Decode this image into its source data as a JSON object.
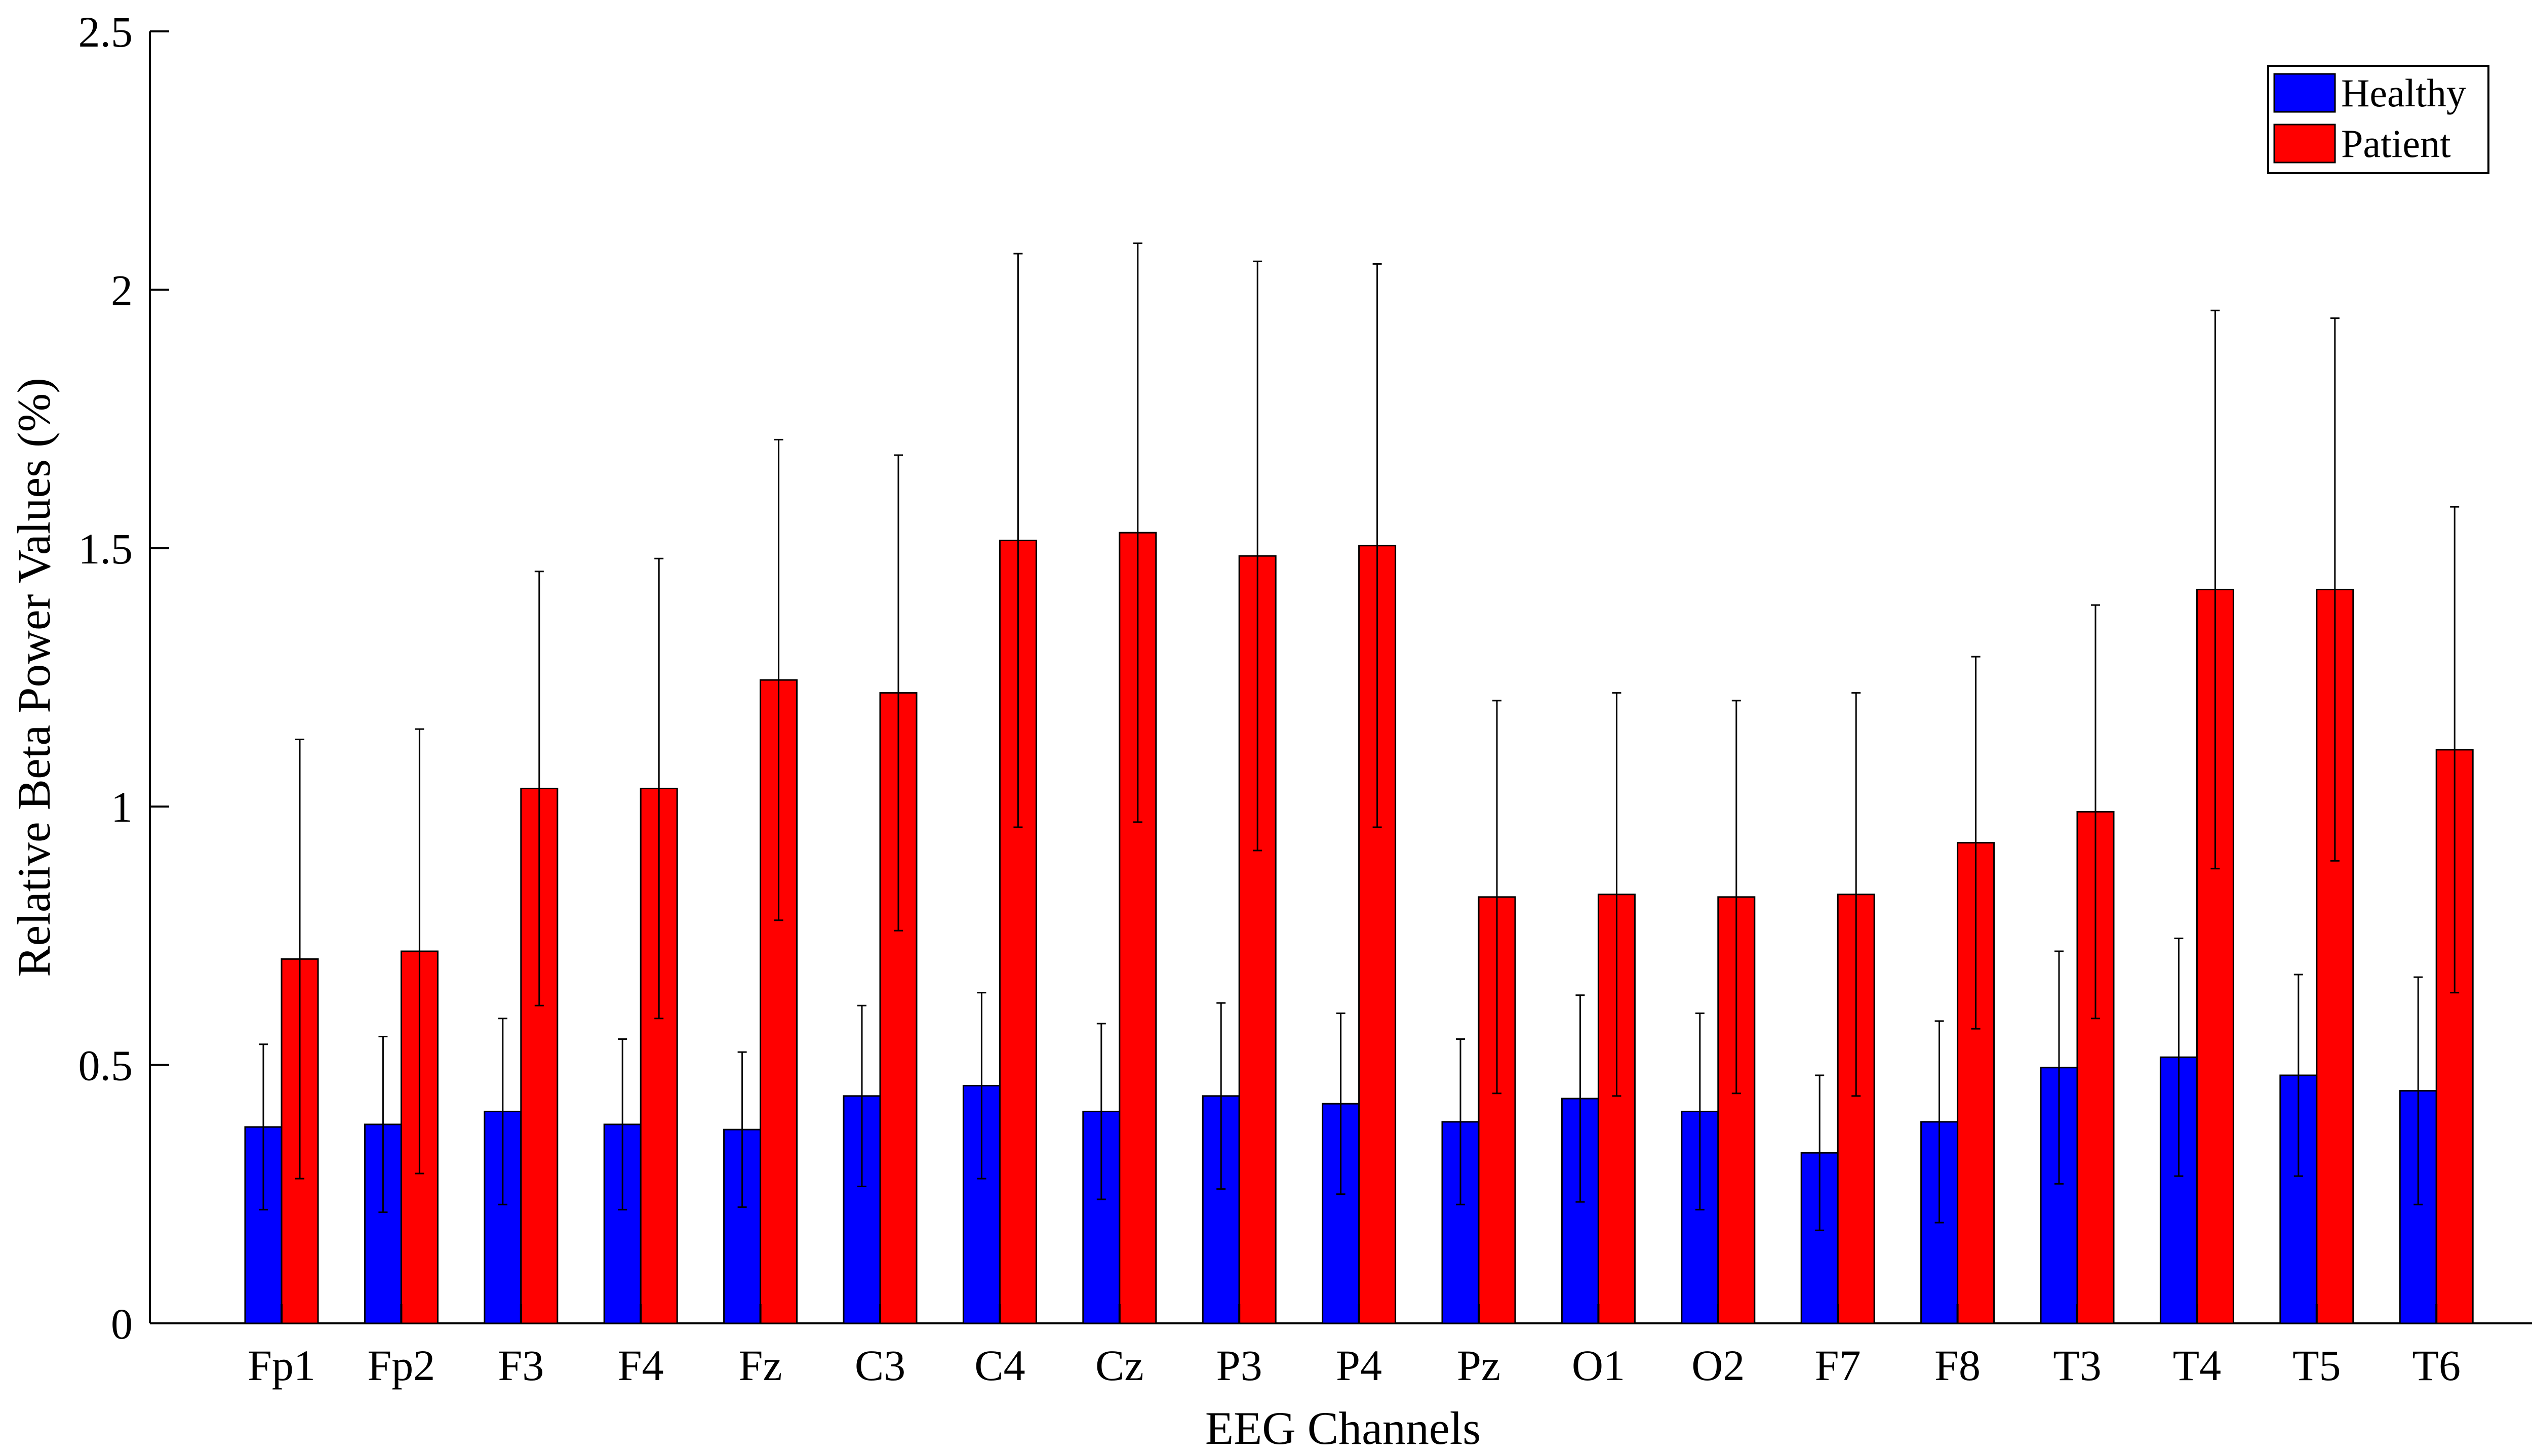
{
  "chart_data": {
    "type": "bar",
    "title": "",
    "xlabel": "EEG Channels",
    "ylabel": "Relative Beta Power Values (%)",
    "ylim": [
      0,
      2.5
    ],
    "yticks": [
      "0",
      "0.5",
      "1",
      "1.5",
      "2",
      "2.5"
    ],
    "categories": [
      "Fp1",
      "Fp2",
      "F3",
      "F4",
      "Fz",
      "C3",
      "C4",
      "Cz",
      "P3",
      "P4",
      "Pz",
      "O1",
      "O2",
      "F7",
      "F8",
      "T3",
      "T4",
      "T5",
      "T6"
    ],
    "legend_position": "top-right",
    "grid": false,
    "series": [
      {
        "name": "Healthy",
        "color": "#0000ff",
        "values": [
          0.38,
          0.385,
          0.41,
          0.385,
          0.375,
          0.44,
          0.46,
          0.41,
          0.44,
          0.425,
          0.39,
          0.435,
          0.41,
          0.33,
          0.39,
          0.495,
          0.515,
          0.48,
          0.45
        ],
        "errors": [
          0.16,
          0.17,
          0.18,
          0.165,
          0.15,
          0.175,
          0.18,
          0.17,
          0.18,
          0.175,
          0.16,
          0.2,
          0.19,
          0.15,
          0.195,
          0.225,
          0.23,
          0.195,
          0.22
        ]
      },
      {
        "name": "Patient",
        "color": "#ff0000",
        "values": [
          0.705,
          0.72,
          1.035,
          1.035,
          1.245,
          1.22,
          1.515,
          1.53,
          1.485,
          1.505,
          0.825,
          0.83,
          0.825,
          0.83,
          0.93,
          0.99,
          1.42,
          1.42,
          1.11
        ],
        "errors": [
          0.425,
          0.43,
          0.42,
          0.445,
          0.465,
          0.46,
          0.555,
          0.56,
          0.57,
          0.545,
          0.38,
          0.39,
          0.38,
          0.39,
          0.36,
          0.4,
          0.54,
          0.525,
          0.47
        ]
      }
    ]
  }
}
